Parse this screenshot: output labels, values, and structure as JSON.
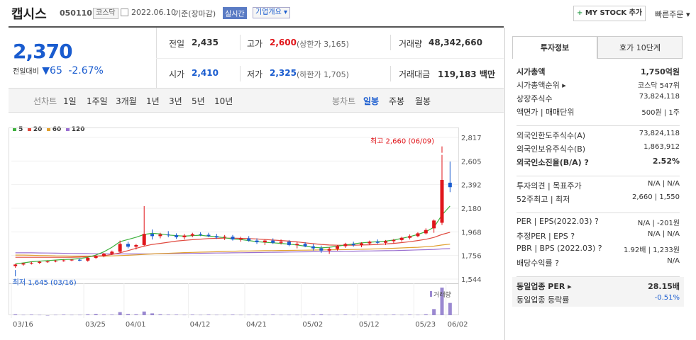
{
  "header": {
    "company": "캡시스",
    "code": "050110",
    "market": "코스닥",
    "date": "2022.06.10",
    "basis": "기준(장마감)",
    "realtime": "실시간",
    "overview": "기업개요 ▾",
    "mystock": "MY STOCK 추가",
    "quick_order": "빠른주문 ▾"
  },
  "price": {
    "current": "2,370",
    "change_label": "전일대비",
    "change": "65",
    "change_pct": "-2.67%"
  },
  "summary": {
    "prev_label": "전일",
    "prev": "2,435",
    "high_label": "고가",
    "high": "2,600",
    "high_limit": "(상한가 3,165)",
    "volume_label": "거래량",
    "volume": "48,342,660",
    "open_label": "시가",
    "open": "2,410",
    "low_label": "저가",
    "low": "2,325",
    "low_limit": "(하한가 1,705)",
    "amount_label": "거래대금",
    "amount": "119,183 백만"
  },
  "line_tabs": {
    "label": "선차트",
    "items": [
      "1일",
      "1주일",
      "3개월",
      "1년",
      "3년",
      "5년",
      "10년"
    ]
  },
  "candle_tabs": {
    "label": "봉차트",
    "items": [
      "일봉",
      "주봉",
      "월봉"
    ],
    "active": "일봉"
  },
  "legend": [
    {
      "label": "5",
      "color": "#3fb23f"
    },
    {
      "label": "20",
      "color": "#e04a3f"
    },
    {
      "label": "60",
      "color": "#e0a030"
    },
    {
      "label": "120",
      "color": "#9a6fd0"
    }
  ],
  "chart_data": {
    "type": "candlestick",
    "y_ticks": [
      "2,817",
      "2,605",
      "2,392",
      "2,180",
      "1,968",
      "1,756",
      "1,544"
    ],
    "ylim": [
      1544,
      2817
    ],
    "x_ticks": [
      "03/16",
      "03/25",
      "04/01",
      "04/12",
      "04/21",
      "05/02",
      "05/12",
      "05/23",
      "06/02"
    ],
    "max_label": "최고 2,660 (06/09)",
    "min_label": "최저 1,645 (03/16)",
    "volume_label": "거래량",
    "candles": [
      [
        1660,
        1680,
        1645,
        1675
      ],
      [
        1675,
        1690,
        1665,
        1685
      ],
      [
        1685,
        1700,
        1675,
        1690
      ],
      [
        1690,
        1705,
        1680,
        1700
      ],
      [
        1700,
        1710,
        1690,
        1702
      ],
      [
        1702,
        1715,
        1695,
        1708
      ],
      [
        1708,
        1720,
        1700,
        1712
      ],
      [
        1712,
        1725,
        1705,
        1718
      ],
      [
        1718,
        1730,
        1705,
        1710
      ],
      [
        1710,
        1740,
        1700,
        1735
      ],
      [
        1735,
        1760,
        1725,
        1750
      ],
      [
        1750,
        1780,
        1740,
        1772
      ],
      [
        1772,
        1800,
        1760,
        1790
      ],
      [
        1790,
        1890,
        1780,
        1860
      ],
      [
        1860,
        1880,
        1820,
        1835
      ],
      [
        1835,
        1860,
        1810,
        1850
      ],
      [
        1850,
        2200,
        1840,
        1950
      ],
      [
        1950,
        1990,
        1900,
        1930
      ],
      [
        1930,
        1960,
        1910,
        1945
      ],
      [
        1945,
        1975,
        1920,
        1938
      ],
      [
        1938,
        1955,
        1905,
        1920
      ],
      [
        1920,
        1950,
        1900,
        1935
      ],
      [
        1935,
        1960,
        1920,
        1948
      ],
      [
        1948,
        1965,
        1930,
        1942
      ],
      [
        1942,
        1960,
        1920,
        1930
      ],
      [
        1930,
        1950,
        1905,
        1918
      ],
      [
        1918,
        1940,
        1895,
        1925
      ],
      [
        1925,
        1940,
        1890,
        1900
      ],
      [
        1900,
        1925,
        1880,
        1910
      ],
      [
        1910,
        1930,
        1880,
        1890
      ],
      [
        1890,
        1910,
        1860,
        1875
      ],
      [
        1875,
        1900,
        1850,
        1890
      ],
      [
        1890,
        1910,
        1860,
        1870
      ],
      [
        1870,
        1900,
        1855,
        1880
      ],
      [
        1880,
        1895,
        1840,
        1850
      ],
      [
        1850,
        1880,
        1820,
        1860
      ],
      [
        1860,
        1875,
        1830,
        1838
      ],
      [
        1838,
        1860,
        1800,
        1820
      ],
      [
        1820,
        1845,
        1780,
        1800
      ],
      [
        1800,
        1830,
        1770,
        1815
      ],
      [
        1815,
        1850,
        1800,
        1840
      ],
      [
        1840,
        1870,
        1825,
        1860
      ],
      [
        1860,
        1880,
        1835,
        1848
      ],
      [
        1848,
        1875,
        1830,
        1865
      ],
      [
        1865,
        1890,
        1850,
        1880
      ],
      [
        1880,
        1900,
        1860,
        1870
      ],
      [
        1870,
        1895,
        1850,
        1885
      ],
      [
        1885,
        1905,
        1865,
        1895
      ],
      [
        1895,
        1925,
        1880,
        1915
      ],
      [
        1915,
        1945,
        1900,
        1930
      ],
      [
        1930,
        1965,
        1920,
        1955
      ],
      [
        1955,
        2000,
        1945,
        1985
      ],
      [
        2000,
        2080,
        1960,
        2070
      ],
      [
        2050,
        2660,
        2030,
        2435
      ],
      [
        2410,
        2600,
        2325,
        2370
      ]
    ],
    "volumes": [
      3,
      1,
      2,
      1,
      0,
      1,
      2,
      1,
      1,
      3,
      4,
      2,
      2,
      10,
      4,
      3,
      12,
      6,
      3,
      2,
      2,
      1,
      2,
      1,
      2,
      1,
      1,
      2,
      1,
      1,
      1,
      1,
      2,
      1,
      1,
      1,
      1,
      2,
      3,
      1,
      1,
      2,
      1,
      1,
      1,
      1,
      1,
      2,
      1,
      2,
      1,
      3,
      20,
      90,
      40
    ],
    "ma5": [
      1680,
      1690,
      1700,
      1705,
      1710,
      1715,
      1720,
      1722,
      1728,
      1740,
      1760,
      1790,
      1830,
      1880,
      1900,
      1920,
      1945,
      1955,
      1950,
      1940,
      1935,
      1930,
      1935,
      1938,
      1930,
      1925,
      1915,
      1905,
      1900,
      1890,
      1880,
      1875,
      1870,
      1865,
      1858,
      1850,
      1840,
      1830,
      1825,
      1830,
      1840,
      1850,
      1860,
      1870,
      1875,
      1880,
      1885,
      1895,
      1910,
      1925,
      1945,
      1970,
      2010,
      2120,
      2200
    ],
    "ma20": [
      1740,
      1740,
      1740,
      1740,
      1740,
      1740,
      1740,
      1740,
      1742,
      1745,
      1750,
      1755,
      1765,
      1780,
      1800,
      1820,
      1840,
      1855,
      1865,
      1875,
      1885,
      1892,
      1898,
      1903,
      1908,
      1910,
      1912,
      1912,
      1910,
      1908,
      1905,
      1900,
      1895,
      1890,
      1885,
      1878,
      1870,
      1862,
      1855,
      1850,
      1848,
      1848,
      1848,
      1850,
      1852,
      1855,
      1860,
      1865,
      1872,
      1880,
      1890,
      1902,
      1918,
      1945,
      1965
    ],
    "ma60": [
      1760,
      1760,
      1758,
      1756,
      1755,
      1753,
      1752,
      1750,
      1750,
      1750,
      1750,
      1750,
      1752,
      1755,
      1758,
      1762,
      1766,
      1770,
      1773,
      1776,
      1779,
      1782,
      1784,
      1786,
      1788,
      1790,
      1792,
      1794,
      1796,
      1797,
      1798,
      1799,
      1800,
      1801,
      1802,
      1803,
      1804,
      1805,
      1806,
      1807,
      1808,
      1809,
      1810,
      1812,
      1814,
      1816,
      1818,
      1821,
      1824,
      1827,
      1830,
      1835,
      1840,
      1850,
      1858
    ],
    "ma120": [
      1780,
      1780,
      1780,
      1779,
      1778,
      1777,
      1776,
      1775,
      1774,
      1773,
      1772,
      1771,
      1770,
      1770,
      1770,
      1770,
      1770,
      1770,
      1771,
      1772,
      1773,
      1774,
      1775,
      1776,
      1777,
      1778,
      1779,
      1780,
      1781,
      1782,
      1783,
      1784,
      1785,
      1786,
      1787,
      1788,
      1789,
      1790,
      1791,
      1792,
      1793,
      1794,
      1795,
      1796,
      1797,
      1798,
      1799,
      1800,
      1802,
      1804,
      1806,
      1808,
      1811,
      1815,
      1818
    ]
  },
  "right_tabs": {
    "active": "투자정보",
    "other": "호가 10단계"
  },
  "invest": {
    "g1": [
      {
        "label": "시가총액",
        "value": "1,750억원",
        "bold": true
      },
      {
        "label": "시가총액순위 ▸",
        "value": "코스닥 547위"
      },
      {
        "label": "상장주식수",
        "value": "73,824,118"
      },
      {
        "label": "액면가 | 매매단위",
        "value": "500원 | 1주"
      }
    ],
    "g2": [
      {
        "label": "외국인한도주식수(A)",
        "value": "73,824,118"
      },
      {
        "label": "외국인보유주식수(B)",
        "value": "1,863,912"
      },
      {
        "label": "외국인소진율(B/A) ?",
        "value": "2.52%",
        "bold": true
      }
    ],
    "g3": [
      {
        "label": "투자의견 | 목표주가",
        "value": "N/A | N/A"
      },
      {
        "label": "52주최고 | 최저",
        "value": "2,660 | 1,550"
      }
    ],
    "g4": [
      {
        "label": "PER | EPS(2022.03) ?",
        "value": "N/A | -201원"
      },
      {
        "label": "추정PER | EPS ?",
        "value": "N/A | N/A"
      },
      {
        "label": "PBR | BPS (2022.03) ?",
        "value": "1.92배 | 1,233원"
      },
      {
        "label": "배당수익률 ?",
        "value": "N/A"
      }
    ],
    "g5": [
      {
        "label": "동일업종 PER ▸",
        "value": "28.15배",
        "bold": true
      },
      {
        "label": "동일업종 등락률",
        "value": "-0.51%",
        "blue": true
      }
    ]
  }
}
